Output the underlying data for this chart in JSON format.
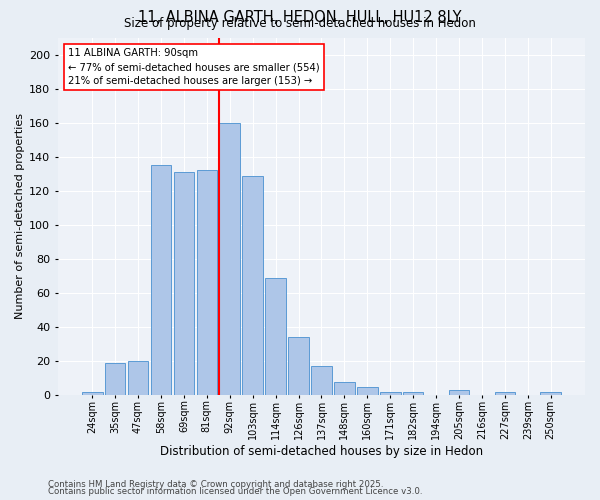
{
  "title1": "11, ALBINA GARTH, HEDON, HULL, HU12 8LY",
  "title2": "Size of property relative to semi-detached houses in Hedon",
  "xlabel": "Distribution of semi-detached houses by size in Hedon",
  "ylabel": "Number of semi-detached properties",
  "bar_labels": [
    "24sqm",
    "35sqm",
    "47sqm",
    "58sqm",
    "69sqm",
    "81sqm",
    "92sqm",
    "103sqm",
    "114sqm",
    "126sqm",
    "137sqm",
    "148sqm",
    "160sqm",
    "171sqm",
    "182sqm",
    "194sqm",
    "205sqm",
    "216sqm",
    "227sqm",
    "239sqm",
    "250sqm"
  ],
  "bar_values": [
    2,
    19,
    20,
    135,
    131,
    132,
    160,
    129,
    69,
    34,
    17,
    8,
    5,
    2,
    2,
    0,
    3,
    0,
    2,
    0,
    2
  ],
  "bar_color": "#aec6e8",
  "bar_edge_color": "#5b9bd5",
  "vline_color": "red",
  "annotation_text": "11 ALBINA GARTH: 90sqm\n← 77% of semi-detached houses are smaller (554)\n21% of semi-detached houses are larger (153) →",
  "annotation_box_color": "white",
  "annotation_box_edge": "red",
  "ylim": [
    0,
    210
  ],
  "yticks": [
    0,
    20,
    40,
    60,
    80,
    100,
    120,
    140,
    160,
    180,
    200
  ],
  "footer1": "Contains HM Land Registry data © Crown copyright and database right 2025.",
  "footer2": "Contains public sector information licensed under the Open Government Licence v3.0.",
  "bg_color": "#e8eef5",
  "plot_bg_color": "#eef2f8"
}
